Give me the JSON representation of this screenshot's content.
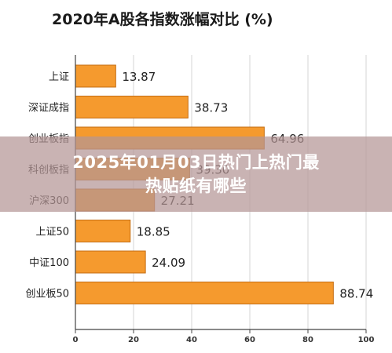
{
  "chart_data": {
    "type": "bar",
    "orientation": "horizontal",
    "title": "2020年A股各指数涨幅对比 (%)",
    "categories": [
      "上证",
      "深证成指",
      "创业板指",
      "科创板指",
      "沪深300",
      "上证50",
      "中证100",
      "创业板50"
    ],
    "values": [
      13.87,
      38.73,
      64.96,
      39.3,
      27.21,
      18.85,
      24.09,
      88.74
    ],
    "value_labels": [
      "13.87",
      "38.73",
      "64.96",
      "39.30",
      "27.21",
      "18.85",
      "24.09",
      "88.74"
    ],
    "xlim": [
      0,
      100
    ],
    "xticks": [
      0,
      20,
      40,
      60,
      80,
      100
    ],
    "grid": true,
    "bar_color": "#f59a2e"
  },
  "banner": {
    "line1": "2025年01月03日热门上热门最",
    "line2": "热贴纸有哪些"
  }
}
